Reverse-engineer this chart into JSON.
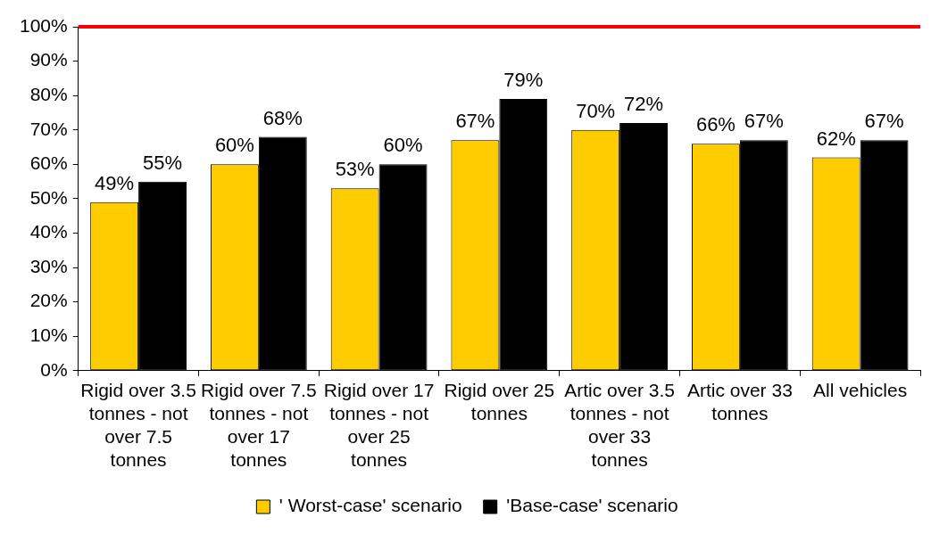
{
  "chart_data": {
    "type": "bar",
    "categories": [
      "Rigid over 3.5 tonnes - not over 7.5 tonnes",
      "Rigid over 7.5 tonnes - not over 17 tonnes",
      "Rigid over 17 tonnes - not over 25 tonnes",
      "Rigid over 25 tonnes",
      "Artic over 3.5 tonnes - not over 33 tonnes",
      "Artic over 33 tonnes",
      "All vehicles"
    ],
    "series": [
      {
        "name": "' Worst-case' scenario",
        "color": "#ffcc00",
        "values": [
          49,
          60,
          53,
          67,
          70,
          66,
          62
        ],
        "value_labels": [
          "49%",
          "60%",
          "53%",
          "67%",
          "70%",
          "66%",
          "62%"
        ]
      },
      {
        "name": "'Base-case' scenario",
        "color": "#000000",
        "values": [
          55,
          68,
          60,
          79,
          72,
          67,
          67
        ],
        "value_labels": [
          "55%",
          "68%",
          "60%",
          "79%",
          "72%",
          "67%",
          "67%"
        ]
      }
    ],
    "ylim": [
      0,
      100
    ],
    "yticks": [
      {
        "value": 0,
        "label": "0%"
      },
      {
        "value": 10,
        "label": "10%"
      },
      {
        "value": 20,
        "label": "20%"
      },
      {
        "value": 30,
        "label": "30%"
      },
      {
        "value": 40,
        "label": "40%"
      },
      {
        "value": 50,
        "label": "50%"
      },
      {
        "value": 60,
        "label": "60%"
      },
      {
        "value": 70,
        "label": "70%"
      },
      {
        "value": 80,
        "label": "80%"
      },
      {
        "value": 90,
        "label": "90%"
      },
      {
        "value": 100,
        "label": "100%"
      }
    ],
    "ref_lines": [
      {
        "axis": "y",
        "value": 100,
        "color": "#ff0000"
      }
    ],
    "grid": false,
    "legend": "bottom"
  }
}
